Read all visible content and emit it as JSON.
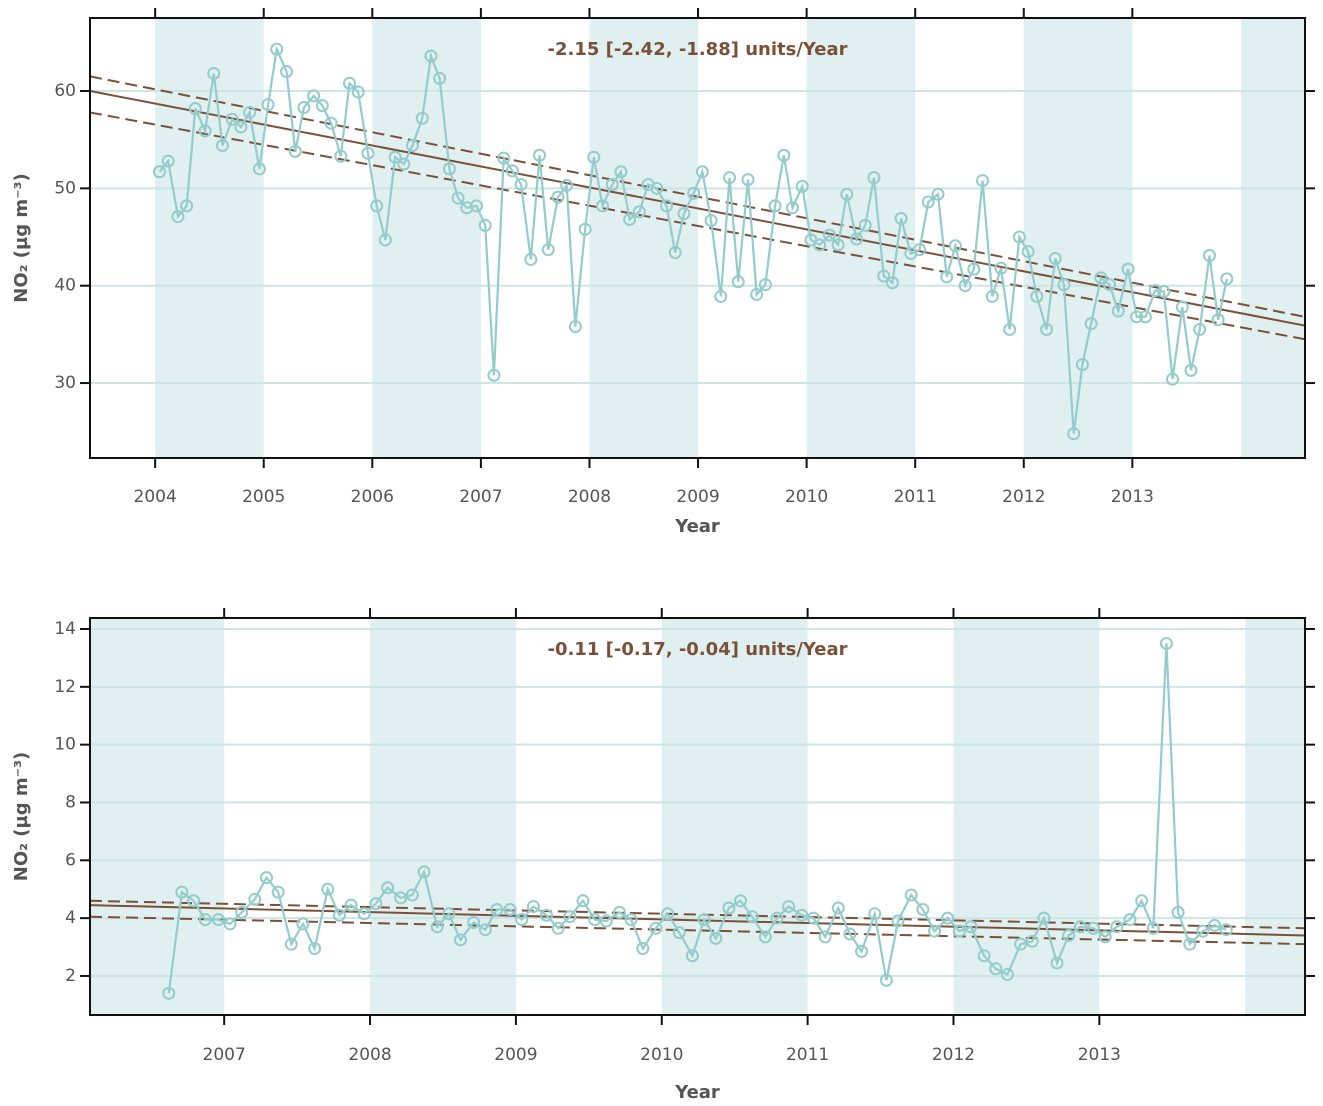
{
  "chart_data": [
    {
      "type": "line",
      "color": "#93cccb",
      "trend_color": "#7a5138",
      "band_color": "#e0efef",
      "grid_color": "#cde5e5",
      "grid": true,
      "annotation": "-2.15 [-2.42, -1.88] units/Year",
      "xlabel": "Year",
      "ylabel": "NO₂ (µg m⁻³)",
      "xlim": [
        2003.4,
        2014.59
      ],
      "ylim": [
        22.3,
        67.5
      ],
      "xticks": [
        2004,
        2005,
        2006,
        2007,
        2008,
        2009,
        2010,
        2011,
        2012,
        2013
      ],
      "yticks": [
        30,
        40,
        50,
        60
      ],
      "x": [
        2004.04,
        2004.12,
        2004.21,
        2004.29,
        2004.37,
        2004.46,
        2004.54,
        2004.62,
        2004.71,
        2004.79,
        2004.87,
        2004.96,
        2005.04,
        2005.12,
        2005.21,
        2005.29,
        2005.37,
        2005.46,
        2005.54,
        2005.62,
        2005.71,
        2005.79,
        2005.87,
        2005.96,
        2006.04,
        2006.12,
        2006.21,
        2006.29,
        2006.37,
        2006.46,
        2006.54,
        2006.62,
        2006.71,
        2006.79,
        2006.87,
        2006.96,
        2007.04,
        2007.12,
        2007.21,
        2007.29,
        2007.37,
        2007.46,
        2007.54,
        2007.62,
        2007.71,
        2007.79,
        2007.87,
        2007.96,
        2008.04,
        2008.12,
        2008.21,
        2008.29,
        2008.37,
        2008.46,
        2008.54,
        2008.62,
        2008.71,
        2008.79,
        2008.87,
        2008.96,
        2009.04,
        2009.12,
        2009.21,
        2009.29,
        2009.37,
        2009.46,
        2009.54,
        2009.62,
        2009.71,
        2009.79,
        2009.87,
        2009.96,
        2010.04,
        2010.12,
        2010.21,
        2010.29,
        2010.37,
        2010.46,
        2010.54,
        2010.62,
        2010.71,
        2010.79,
        2010.87,
        2010.96,
        2011.04,
        2011.12,
        2011.21,
        2011.29,
        2011.37,
        2011.46,
        2011.54,
        2011.62,
        2011.71,
        2011.79,
        2011.87,
        2011.96,
        2012.04,
        2012.12,
        2012.21,
        2012.29,
        2012.37,
        2012.46,
        2012.54,
        2012.62,
        2012.71,
        2012.79,
        2012.87,
        2012.96,
        2013.04,
        2013.12,
        2013.21,
        2013.29,
        2013.37,
        2013.46,
        2013.54,
        2013.62,
        2013.71,
        2013.79,
        2013.87
      ],
      "values": [
        51.7,
        52.8,
        47.1,
        48.2,
        58.2,
        55.9,
        61.8,
        54.4,
        57.1,
        56.3,
        57.8,
        52.0,
        58.6,
        64.3,
        62.0,
        53.8,
        58.3,
        59.5,
        58.5,
        56.7,
        53.3,
        60.8,
        59.9,
        53.6,
        48.2,
        44.7,
        53.2,
        52.5,
        54.4,
        57.2,
        63.6,
        61.3,
        52.0,
        49.0,
        48.0,
        48.2,
        46.2,
        30.8,
        53.1,
        51.8,
        50.4,
        42.7,
        53.4,
        43.7,
        49.1,
        50.3,
        35.8,
        45.8,
        53.2,
        48.2,
        50.4,
        51.7,
        46.8,
        47.6,
        50.4,
        50.0,
        48.2,
        43.4,
        47.4,
        49.5,
        51.7,
        46.7,
        38.9,
        51.1,
        40.4,
        50.9,
        39.1,
        40.1,
        48.2,
        53.4,
        48.0,
        50.2,
        44.7,
        44.2,
        45.2,
        44.2,
        49.4,
        44.8,
        46.2,
        51.1,
        41.0,
        40.3,
        46.9,
        43.3,
        43.7,
        48.6,
        49.4,
        40.9,
        44.1,
        40.0,
        41.7,
        50.8,
        38.9,
        41.8,
        35.5,
        45.0,
        43.5,
        38.9,
        35.5,
        42.8,
        40.1,
        24.8,
        31.9,
        36.1,
        40.8,
        40.1,
        37.4,
        41.7,
        36.8,
        36.8,
        39.5,
        39.4,
        30.4,
        37.8,
        31.3,
        35.5,
        43.1,
        36.5,
        40.7
      ],
      "trend": {
        "x": [
          2003.4,
          2014.59
        ],
        "mean": [
          60.0,
          35.9
        ],
        "upper": [
          61.5,
          36.8
        ],
        "lower": [
          57.8,
          34.5
        ]
      }
    },
    {
      "type": "line",
      "color": "#93cccb",
      "trend_color": "#7a5138",
      "band_color": "#e0efef",
      "grid_color": "#cde5e5",
      "grid": true,
      "annotation": "-0.11 [-0.17, -0.04] units/Year",
      "xlabel": "Year",
      "ylabel": "NO₂ (µg m⁻³)",
      "xlim": [
        2006.08,
        2014.41
      ],
      "ylim": [
        0.65,
        14.38
      ],
      "xticks": [
        2007,
        2008,
        2009,
        2010,
        2011,
        2012,
        2013
      ],
      "yticks": [
        2,
        4,
        6,
        8,
        10,
        12,
        14
      ],
      "x": [
        2006.62,
        2006.71,
        2006.79,
        2006.87,
        2006.96,
        2007.04,
        2007.12,
        2007.21,
        2007.29,
        2007.37,
        2007.46,
        2007.54,
        2007.62,
        2007.71,
        2007.79,
        2007.87,
        2007.96,
        2008.04,
        2008.12,
        2008.21,
        2008.29,
        2008.37,
        2008.46,
        2008.54,
        2008.62,
        2008.71,
        2008.79,
        2008.87,
        2008.96,
        2009.04,
        2009.12,
        2009.21,
        2009.29,
        2009.37,
        2009.46,
        2009.54,
        2009.62,
        2009.71,
        2009.79,
        2009.87,
        2009.96,
        2010.04,
        2010.12,
        2010.21,
        2010.29,
        2010.37,
        2010.46,
        2010.54,
        2010.62,
        2010.71,
        2010.79,
        2010.87,
        2010.96,
        2011.04,
        2011.12,
        2011.21,
        2011.29,
        2011.37,
        2011.46,
        2011.54,
        2011.62,
        2011.71,
        2011.79,
        2011.87,
        2011.96,
        2012.04,
        2012.12,
        2012.21,
        2012.29,
        2012.37,
        2012.46,
        2012.54,
        2012.62,
        2012.71,
        2012.79,
        2012.87,
        2012.96,
        2013.04,
        2013.12,
        2013.21,
        2013.29,
        2013.37,
        2013.46,
        2013.54,
        2013.62,
        2013.71,
        2013.79,
        2013.87
      ],
      "values": [
        1.4,
        4.9,
        4.6,
        3.95,
        3.95,
        3.8,
        4.2,
        4.65,
        5.4,
        4.9,
        3.1,
        3.8,
        2.95,
        5.0,
        4.1,
        4.45,
        4.15,
        4.5,
        5.05,
        4.7,
        4.8,
        5.6,
        3.7,
        4.15,
        3.25,
        3.85,
        3.6,
        4.3,
        4.3,
        3.95,
        4.4,
        4.1,
        3.65,
        4.05,
        4.6,
        3.95,
        3.9,
        4.2,
        3.95,
        2.95,
        3.65,
        4.15,
        3.5,
        2.7,
        3.95,
        3.3,
        4.35,
        4.6,
        4.05,
        3.35,
        4.0,
        4.4,
        4.1,
        4.0,
        3.35,
        4.35,
        3.45,
        2.85,
        4.15,
        1.85,
        3.9,
        4.8,
        4.3,
        3.55,
        4.0,
        3.55,
        3.7,
        2.7,
        2.25,
        2.05,
        3.1,
        3.2,
        4.0,
        2.45,
        3.4,
        3.7,
        3.65,
        3.35,
        3.7,
        3.95,
        4.6,
        3.65,
        13.5,
        4.2,
        3.1,
        3.55,
        3.75,
        3.6
      ],
      "trend": {
        "x": [
          2006.08,
          2014.41
        ],
        "mean": [
          4.45,
          3.4
        ],
        "upper": [
          4.6,
          3.65
        ],
        "lower": [
          4.05,
          3.1
        ]
      }
    }
  ]
}
